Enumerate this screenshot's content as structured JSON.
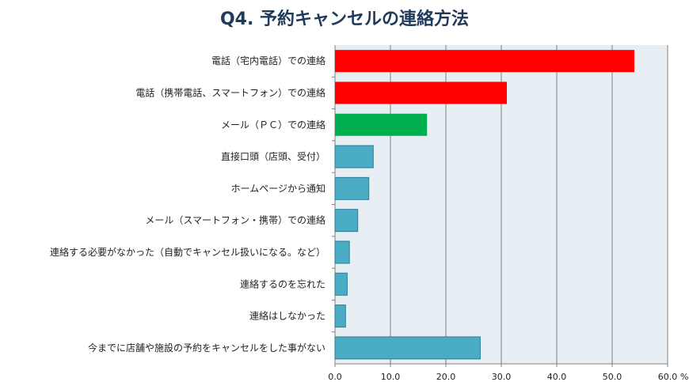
{
  "chart_data": {
    "type": "bar",
    "orientation": "horizontal",
    "title": "Q4. 予約キャンセルの連絡方法",
    "xlabel": "",
    "ylabel": "",
    "unit": "%",
    "xlim": [
      0,
      60
    ],
    "xticks": [
      "0.0",
      "10.0",
      "20.0",
      "30.0",
      "40.0",
      "50.0",
      "60.0"
    ],
    "grid": true,
    "categories": [
      "電話（宅内電話）での連絡",
      "電話（携帯電話、スマートフォン）での連絡",
      "メール（ＰＣ）での連絡",
      "直接口頭（店頭、受付）",
      "ホームページから通知",
      "メール（スマートフォン・携帯）での連絡",
      "連絡する必要がなかった（自動でキャンセル扱いになる。など）",
      "連絡するのを忘れた",
      "連絡はしなかった",
      "今までに店舗や施設の予約をキャンセルをした事がない"
    ],
    "values": [
      54.0,
      31.0,
      16.6,
      6.9,
      6.1,
      4.1,
      2.6,
      2.2,
      1.9,
      26.2
    ],
    "colors": [
      "#ff0000",
      "#ff0000",
      "#00b050",
      "#4bacc6",
      "#4bacc6",
      "#4bacc6",
      "#4bacc6",
      "#4bacc6",
      "#4bacc6",
      "#4bacc6"
    ],
    "plot_background": "#e8eff4"
  }
}
